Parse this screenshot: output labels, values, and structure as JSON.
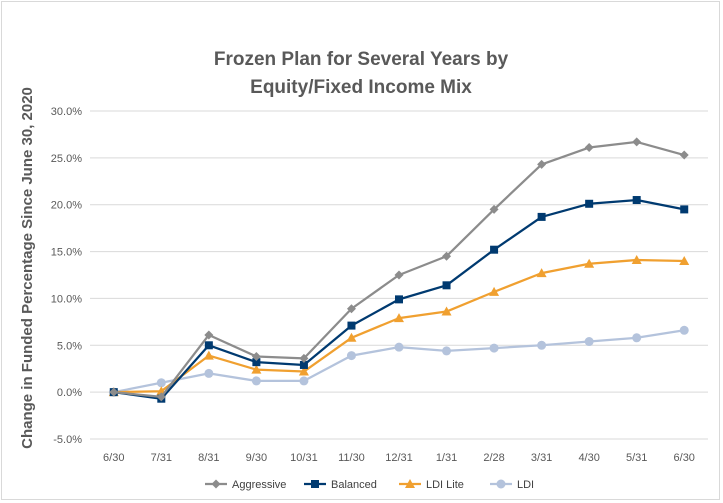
{
  "chart_data": {
    "type": "line",
    "title_lines": [
      "Frozen Plan for Several Years by",
      "Equity/Fixed Income Mix"
    ],
    "xlabel": "",
    "ylabel": "Change in Funded Percentage Since June 30, 2020",
    "categories": [
      "6/30",
      "7/31",
      "8/31",
      "9/30",
      "10/31",
      "11/30",
      "12/31",
      "1/31",
      "2/28",
      "3/31",
      "4/30",
      "5/31",
      "6/30"
    ],
    "ylim": [
      -5,
      30
    ],
    "yticks": [
      -5,
      0,
      5,
      10,
      15,
      20,
      25,
      30
    ],
    "ytick_labels": [
      "-5.0%",
      "0.0%",
      "5.0%",
      "10.0%",
      "15.0%",
      "20.0%",
      "25.0%",
      "30.0%"
    ],
    "grid": true,
    "legend": "bottom",
    "series": [
      {
        "name": "Aggressive",
        "color": "#8c8c8c",
        "marker": "diamond",
        "values": [
          0,
          -0.5,
          6.1,
          3.8,
          3.6,
          8.9,
          12.5,
          14.5,
          19.5,
          24.3,
          26.1,
          26.7,
          25.3
        ]
      },
      {
        "name": "Balanced",
        "color": "#003a70",
        "marker": "square",
        "values": [
          0,
          -0.7,
          5.0,
          3.2,
          2.9,
          7.1,
          9.9,
          11.4,
          15.2,
          18.7,
          20.1,
          20.5,
          19.5
        ]
      },
      {
        "name": "LDI Lite",
        "color": "#f0a030",
        "marker": "triangle",
        "values": [
          0,
          0.1,
          3.9,
          2.4,
          2.2,
          5.8,
          7.9,
          8.6,
          10.7,
          12.7,
          13.7,
          14.1,
          14.0
        ]
      },
      {
        "name": "LDI",
        "color": "#b4c3dc",
        "marker": "circle",
        "values": [
          0,
          1.0,
          2.0,
          1.2,
          1.2,
          3.9,
          4.8,
          4.4,
          4.7,
          5.0,
          5.4,
          5.8,
          6.6
        ]
      }
    ]
  }
}
